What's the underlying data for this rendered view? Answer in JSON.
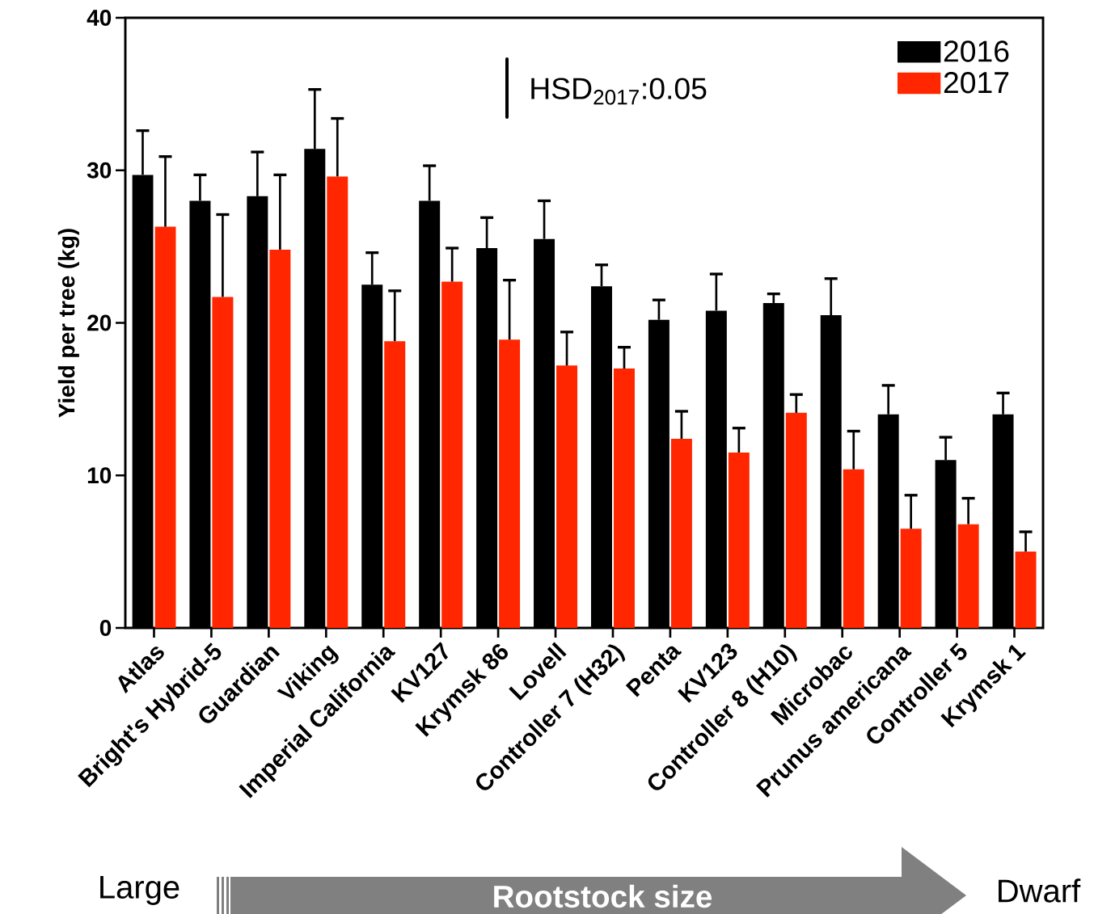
{
  "chart_data": {
    "type": "bar",
    "ylabel": "Yield per tree (kg)",
    "categories": [
      "Atlas",
      "Bright's Hybrid-5",
      "Guardian",
      "Viking",
      "Imperial California",
      "KV127",
      "Krymsk 86",
      "Lovell",
      "Controller 7 (H32)",
      "Penta",
      "KV123",
      "Controller 8 (H10)",
      "Microbac",
      "Prunus americana",
      "Controller 5",
      "Krymsk 1"
    ],
    "series": [
      {
        "name": "2016",
        "color": "#000000",
        "values": [
          29.7,
          28.0,
          28.3,
          31.4,
          22.5,
          28.0,
          24.9,
          25.5,
          22.4,
          20.2,
          20.8,
          21.3,
          20.5,
          14.0,
          11.0,
          14.0
        ],
        "errors": [
          [
            29.7,
            32.6
          ],
          [
            28.0,
            29.7
          ],
          [
            28.3,
            31.2
          ],
          [
            31.4,
            35.3
          ],
          [
            22.5,
            24.6
          ],
          [
            28.0,
            30.3
          ],
          [
            24.9,
            26.9
          ],
          [
            25.5,
            28.0
          ],
          [
            22.4,
            23.8
          ],
          [
            20.2,
            21.5
          ],
          [
            20.8,
            23.2
          ],
          [
            21.3,
            21.9
          ],
          [
            20.5,
            22.9
          ],
          [
            14.0,
            15.9
          ],
          [
            11.0,
            12.5
          ],
          [
            14.0,
            15.4
          ]
        ]
      },
      {
        "name": "2017",
        "color": "#ff2600",
        "values": [
          26.3,
          21.7,
          24.8,
          29.6,
          18.8,
          22.7,
          18.9,
          17.2,
          17.0,
          12.4,
          11.5,
          14.1,
          10.4,
          6.5,
          6.8,
          5.0
        ],
        "errors": [
          [
            26.3,
            30.9
          ],
          [
            21.7,
            27.1
          ],
          [
            24.8,
            29.7
          ],
          [
            29.6,
            33.4
          ],
          [
            18.8,
            22.1
          ],
          [
            22.7,
            24.9
          ],
          [
            18.9,
            22.8
          ],
          [
            17.2,
            19.4
          ],
          [
            17.0,
            18.4
          ],
          [
            12.4,
            14.2
          ],
          [
            11.5,
            13.1
          ],
          [
            14.1,
            15.3
          ],
          [
            10.4,
            12.9
          ],
          [
            6.5,
            8.7
          ],
          [
            6.8,
            8.5
          ],
          [
            5.0,
            6.3
          ]
        ]
      }
    ],
    "ylim": [
      0,
      40
    ],
    "yticks": [
      0,
      10,
      20,
      30,
      40
    ],
    "legend": "top right",
    "annotations": [
      "HSD$_{2017}$:0.05",
      "Large",
      "Rootstock size",
      "Dwarf"
    ]
  }
}
